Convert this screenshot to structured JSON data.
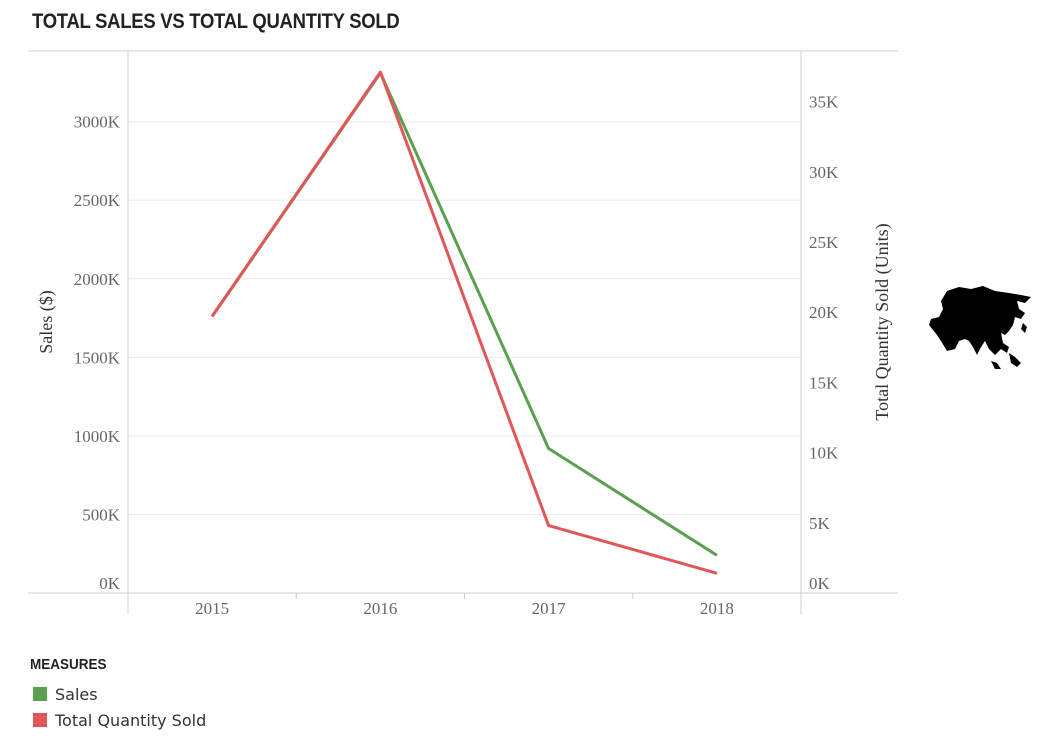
{
  "title": "TOTAL SALES VS TOTAL QUANTITY SOLD",
  "legend": {
    "title": "MEASURES",
    "items": [
      {
        "label": "Sales",
        "color": "#59a14f"
      },
      {
        "label": "Total Quantity Sold",
        "color": "#e15759"
      }
    ]
  },
  "map_icon": "asia-map-icon",
  "chart_data": {
    "type": "line",
    "categories": [
      "2015",
      "2016",
      "2017",
      "2018"
    ],
    "series": [
      {
        "name": "Sales",
        "axis": "left",
        "values": [
          1760000,
          3310000,
          920000,
          240000
        ],
        "color": "#59a14f"
      },
      {
        "name": "Total Quantity Sold",
        "axis": "right",
        "values": [
          19700,
          37100,
          4800,
          1400
        ],
        "color": "#e15759"
      }
    ],
    "ylabel": "Sales ($)",
    "ylabel_right": "Total Quantity Sold (Units)",
    "ylim": [
      0,
      3450000
    ],
    "ylim_right": [
      0,
      38600
    ],
    "yticks": [
      0,
      500000,
      1000000,
      1500000,
      2000000,
      2500000,
      3000000
    ],
    "ytick_labels": [
      "0K",
      "500K",
      "1000K",
      "1500K",
      "2000K",
      "2500K",
      "3000K"
    ],
    "yticks_right": [
      0,
      5000,
      10000,
      15000,
      20000,
      25000,
      30000,
      35000
    ],
    "ytick_labels_right": [
      "0K",
      "5K",
      "10K",
      "15K",
      "20K",
      "25K",
      "30K",
      "35K"
    ],
    "grid": true
  }
}
